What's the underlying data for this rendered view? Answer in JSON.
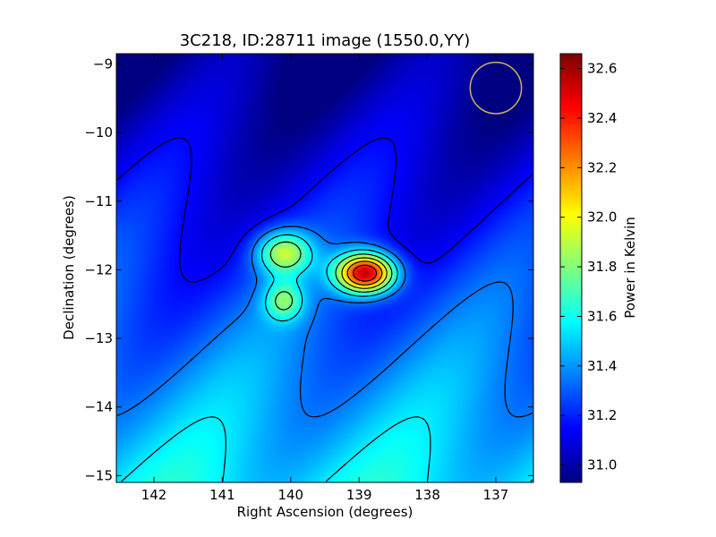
{
  "chart_data": {
    "type": "heatmap",
    "title": "3C218, ID:28711 image (1550.0,YY)",
    "xlabel": "Right Ascension (degrees)",
    "ylabel": "Declination (degrees)",
    "xlim": [
      142.55,
      136.45
    ],
    "ylim": [
      -15.1,
      -8.85
    ],
    "x_ticks": [
      142,
      141,
      140,
      139,
      138,
      137
    ],
    "x_tick_labels": [
      "142",
      "141",
      "140",
      "139",
      "138",
      "137"
    ],
    "y_ticks": [
      -9,
      -10,
      -11,
      -12,
      -13,
      -14,
      -15
    ],
    "y_tick_labels": [
      "−9",
      "−10",
      "−11",
      "−12",
      "−13",
      "−14",
      "−15"
    ],
    "colorbar": {
      "label": "Power in Kelvin",
      "range": [
        30.93,
        32.66
      ],
      "ticks": [
        31.0,
        31.2,
        31.4,
        31.6,
        31.8,
        32.0,
        32.2,
        32.4,
        32.6
      ],
      "tick_labels": [
        "31.0",
        "31.2",
        "31.4",
        "31.6",
        "31.8",
        "32.0",
        "32.2",
        "32.4",
        "32.6"
      ],
      "colormap": "jet"
    },
    "sources": [
      {
        "ra": 138.9,
        "dec": -12.05,
        "peak_kelvin": 32.65
      },
      {
        "ra": 140.1,
        "dec": -11.75,
        "peak_kelvin": 31.95
      },
      {
        "ra": 140.1,
        "dec": -12.45,
        "peak_kelvin": 31.75
      }
    ],
    "background_kelvin": {
      "north": 30.95,
      "south": 31.55
    },
    "beam_marker": {
      "ra": 137.0,
      "dec": -9.35,
      "diameter_deg": 0.75,
      "color": "#c8b45a"
    },
    "contours": {
      "color": "#000000"
    }
  }
}
